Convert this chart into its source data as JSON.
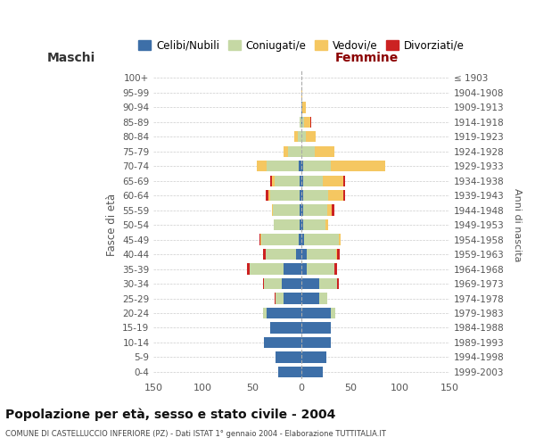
{
  "age_groups": [
    "0-4",
    "5-9",
    "10-14",
    "15-19",
    "20-24",
    "25-29",
    "30-34",
    "35-39",
    "40-44",
    "45-49",
    "50-54",
    "55-59",
    "60-64",
    "65-69",
    "70-74",
    "75-79",
    "80-84",
    "85-89",
    "90-94",
    "95-99",
    "100+"
  ],
  "birth_years": [
    "1999-2003",
    "1994-1998",
    "1989-1993",
    "1984-1988",
    "1979-1983",
    "1974-1978",
    "1969-1973",
    "1964-1968",
    "1959-1963",
    "1954-1958",
    "1949-1953",
    "1944-1948",
    "1939-1943",
    "1934-1938",
    "1929-1933",
    "1924-1928",
    "1919-1923",
    "1914-1918",
    "1909-1913",
    "1904-1908",
    "≤ 1903"
  ],
  "males": {
    "celibi": [
      24,
      26,
      38,
      32,
      35,
      18,
      20,
      18,
      6,
      3,
      2,
      2,
      2,
      2,
      3,
      0,
      0,
      0,
      0,
      0,
      0
    ],
    "coniugati": [
      0,
      0,
      0,
      0,
      4,
      8,
      18,
      35,
      30,
      38,
      26,
      27,
      30,
      25,
      32,
      14,
      4,
      2,
      0,
      0,
      0
    ],
    "vedovi": [
      0,
      0,
      0,
      0,
      0,
      0,
      0,
      0,
      0,
      1,
      0,
      1,
      2,
      3,
      10,
      4,
      3,
      0,
      0,
      0,
      0
    ],
    "divorziati": [
      0,
      0,
      0,
      0,
      0,
      1,
      1,
      2,
      3,
      1,
      0,
      0,
      2,
      2,
      0,
      0,
      0,
      0,
      0,
      0,
      0
    ]
  },
  "females": {
    "nubili": [
      22,
      25,
      30,
      30,
      30,
      18,
      18,
      5,
      5,
      3,
      2,
      2,
      2,
      2,
      2,
      0,
      0,
      1,
      1,
      0,
      0
    ],
    "coniugate": [
      0,
      0,
      0,
      0,
      4,
      8,
      18,
      28,
      30,
      35,
      22,
      24,
      25,
      20,
      28,
      13,
      4,
      2,
      0,
      0,
      0
    ],
    "vedove": [
      0,
      0,
      0,
      0,
      0,
      0,
      0,
      0,
      1,
      2,
      3,
      5,
      15,
      20,
      55,
      20,
      10,
      6,
      3,
      1,
      0
    ],
    "divorziate": [
      0,
      0,
      0,
      0,
      0,
      0,
      2,
      3,
      3,
      0,
      0,
      2,
      2,
      2,
      0,
      0,
      0,
      1,
      0,
      0,
      0
    ]
  },
  "colors": {
    "celibi": "#3d6fa8",
    "coniugati": "#c5d8a4",
    "vedovi": "#f5c761",
    "divorziati": "#cc2222"
  },
  "title": "Popolazione per età, sesso e stato civile - 2004",
  "subtitle": "COMUNE DI CASTELLUCCIO INFERIORE (PZ) - Dati ISTAT 1° gennaio 2004 - Elaborazione TUTTITALIA.IT",
  "xlabel_left": "Maschi",
  "xlabel_right": "Femmine",
  "ylabel_left": "Fasce di età",
  "ylabel_right": "Anni di nascita",
  "xlim": 150,
  "legend_labels": [
    "Celibi/Nubili",
    "Coniugati/e",
    "Vedovi/e",
    "Divorziati/e"
  ],
  "background_color": "#ffffff",
  "grid_color": "#cccccc",
  "femmine_color": "#8b0000"
}
